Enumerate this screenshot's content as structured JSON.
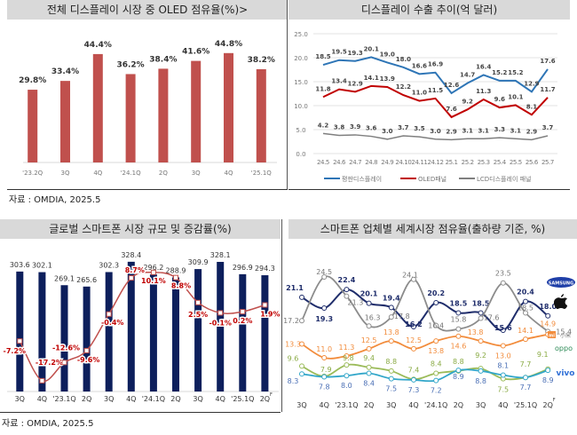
{
  "colors": {
    "oled_bar": "#c0504d",
    "flat_panel": "#2e75b6",
    "oled_panel": "#c00000",
    "lcd_panel": "#7f7f7f",
    "market_bar": "#0d1f5c",
    "growth_line": "#c0504d",
    "samsung": "#1f2d6b",
    "apple": "#8c8c8c",
    "xiaomi": "#f28c3c",
    "oppo": "#9bbb59",
    "vivo": "#31a6c9"
  },
  "source_top": "자료 : OMDIA, 2025.5",
  "source_bottom": "자료 : OMDIA, 2025.5",
  "chart_data": [
    {
      "type": "bar",
      "title": "전체 디스플레이 시장 중 OLED 점유율(%)>",
      "categories": [
        "'23.2Q",
        "3Q",
        "4Q",
        "'24.1Q",
        "2Q",
        "3Q",
        "4Q",
        "'25.1Q"
      ],
      "values": [
        29.8,
        33.4,
        44.4,
        36.2,
        38.4,
        41.6,
        44.8,
        38.2
      ],
      "value_labels": [
        "29.8%",
        "33.4%",
        "44.4%",
        "36.2%",
        "38.4%",
        "41.6%",
        "44.8%",
        "38.2%"
      ],
      "ylim": [
        0,
        50
      ],
      "grid": false
    },
    {
      "type": "line",
      "title": "디스플레이 수출 추이(억 달러)",
      "categories": [
        "24.5",
        "24.6",
        "24.7",
        "24.8",
        "24.9",
        "24.10",
        "24.11",
        "24.12",
        "25.1",
        "25.2",
        "25.3",
        "25.4",
        "25.5",
        "25.6",
        "25.7"
      ],
      "yticks": [
        "0.0",
        "5.0",
        "10.0",
        "15.0",
        "20.0",
        "25.0"
      ],
      "ylim": [
        0,
        25
      ],
      "grid": true,
      "legend": "bottom",
      "series": [
        {
          "name": "평판디스플레이",
          "values": [
            18.5,
            19.5,
            19.3,
            20.1,
            19.0,
            18.0,
            16.6,
            16.9,
            12.6,
            14.7,
            16.4,
            15.2,
            15.2,
            12.9,
            17.6
          ]
        },
        {
          "name": "OLED패널",
          "values": [
            11.8,
            13.4,
            12.9,
            14.1,
            13.9,
            12.2,
            11.0,
            11.5,
            7.6,
            9.2,
            11.3,
            9.6,
            10.1,
            8.1,
            11.7
          ]
        },
        {
          "name": "LCD디스플레이 패널",
          "values": [
            4.2,
            3.8,
            3.9,
            3.6,
            3.0,
            3.7,
            3.5,
            3.0,
            2.9,
            3.1,
            3.1,
            3.3,
            3.1,
            2.9,
            3.7
          ]
        }
      ]
    },
    {
      "type": "bar",
      "title": "글로벌 스마트폰 시장 규모 및 증감률(%)",
      "categories": [
        "3Q",
        "4Q",
        "'23.1Q",
        "2Q",
        "3Q",
        "4Q",
        "'24.1Q",
        "2Q",
        "3Q",
        "4Q",
        "'25.1Q",
        "2Q"
      ],
      "forecast_mark": "F",
      "values": [
        303.6,
        302.1,
        269.1,
        265.6,
        302.3,
        328.4,
        296.2,
        288.9,
        309.9,
        328.1,
        296.9,
        294.3
      ],
      "growth": [
        -7.2,
        -17.2,
        -12.6,
        -9.6,
        -0.4,
        8.7,
        10.1,
        8.8,
        2.5,
        -0.1,
        0.2,
        1.9
      ],
      "growth_labels": [
        "-7.2%",
        "-17.2%",
        "-12.6%",
        "-9.6%",
        "-0.4%",
        "8.7%",
        "10.1%",
        "8.8%",
        "2.5%",
        "-0.1%",
        "0.2%",
        "1.9%"
      ],
      "ylim": [
        0,
        340
      ],
      "grid": false
    },
    {
      "type": "line",
      "title": "스마트폰 업체별 세계시장 점유율(출하량 기준, %)",
      "categories": [
        "3Q",
        "4Q",
        "'23.1Q",
        "2Q",
        "3Q",
        "4Q",
        "'24.1Q",
        "2Q",
        "3Q",
        "4Q",
        "'25.1Q",
        "2Q"
      ],
      "forecast_mark": "F",
      "grid": false,
      "legend": "right (brand logos)",
      "series": [
        {
          "name": "SAMSUNG",
          "values": [
            21.1,
            19.3,
            22.4,
            20.1,
            19.4,
            16.2,
            20.2,
            18.5,
            18.5,
            15.6,
            20.4,
            18.0
          ]
        },
        {
          "name": "Apple",
          "values": [
            17.2,
            24.5,
            21.3,
            16.3,
            17.8,
            24.1,
            16.4,
            15.8,
            17.6,
            23.5,
            18.5,
            15.4
          ]
        },
        {
          "name": "mi 小米",
          "values": [
            13.3,
            11.0,
            11.3,
            12.5,
            13.8,
            12.5,
            13.8,
            14.6,
            13.8,
            13.0,
            14.1,
            14.9
          ]
        },
        {
          "name": "oppo",
          "values": [
            9.6,
            7.9,
            9.8,
            9.4,
            8.8,
            7.4,
            8.4,
            8.8,
            9.2,
            7.5,
            7.7,
            9.1
          ]
        },
        {
          "name": "vivo",
          "values": [
            8.3,
            7.8,
            8.0,
            8.4,
            7.5,
            7.3,
            7.2,
            8.9,
            8.8,
            8.1,
            7.7,
            8.9
          ]
        }
      ]
    }
  ]
}
